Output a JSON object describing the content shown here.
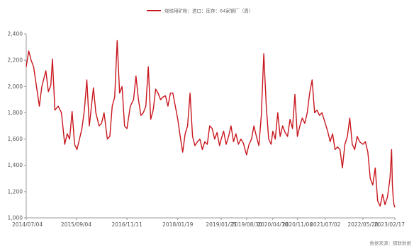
{
  "chart_data": {
    "type": "line",
    "legend": {
      "label": "烧结用矿粉：进口：库存：64家钢厂（周）",
      "position": "top-center"
    },
    "source": "数据来源：钢联数据",
    "ylim": [
      1000,
      2400
    ],
    "y_ticks": [
      "1,000",
      "1,200",
      "1,400",
      "1,600",
      "1,800",
      "2,000",
      "2,200",
      "2,400"
    ],
    "y_tick_values": [
      1000,
      1200,
      1400,
      1600,
      1800,
      2000,
      2200,
      2400
    ],
    "x_tick_labels": [
      "2014/07/04",
      "2015/09/04",
      "2016/11/11",
      "2018/01/19",
      "2019/01/25",
      "2019/08/30",
      "2020/04/10",
      "2020/11/06",
      "2021/07/02",
      "2022/05/20",
      "2023/02/17"
    ],
    "x_range": [
      "2014/07/04",
      "2023/02/17"
    ],
    "grid": {
      "horizontal": false,
      "vertical": false
    },
    "colors": {
      "series": "#c8161d",
      "axis": "#999999",
      "text": "#555555"
    },
    "series": [
      {
        "name": "烧结用矿粉：进口：库存：64家钢厂（周）",
        "points": [
          [
            "2014/07/04",
            2150
          ],
          [
            "2014/07/25",
            2270
          ],
          [
            "2014/08/15",
            2200
          ],
          [
            "2014/09/05",
            2150
          ],
          [
            "2014/10/03",
            1980
          ],
          [
            "2014/10/24",
            1850
          ],
          [
            "2014/11/14",
            2000
          ],
          [
            "2014/12/19",
            2120
          ],
          [
            "2015/01/09",
            1960
          ],
          [
            "2015/01/30",
            2010
          ],
          [
            "2015/02/13",
            2210
          ],
          [
            "2015/03/06",
            1820
          ],
          [
            "2015/04/03",
            1850
          ],
          [
            "2015/05/01",
            1800
          ],
          [
            "2015/05/29",
            1560
          ],
          [
            "2015/06/19",
            1640
          ],
          [
            "2015/07/10",
            1600
          ],
          [
            "2015/07/31",
            1810
          ],
          [
            "2015/08/21",
            1560
          ],
          [
            "2015/09/11",
            1520
          ],
          [
            "2015/10/02",
            1600
          ],
          [
            "2015/10/23",
            1680
          ],
          [
            "2015/11/13",
            1820
          ],
          [
            "2015/12/04",
            2050
          ],
          [
            "2015/12/25",
            1700
          ],
          [
            "2016/01/29",
            1990
          ],
          [
            "2016/02/19",
            1800
          ],
          [
            "2016/03/18",
            1700
          ],
          [
            "2016/04/08",
            1720
          ],
          [
            "2016/04/29",
            1800
          ],
          [
            "2016/05/27",
            1600
          ],
          [
            "2016/06/17",
            1620
          ],
          [
            "2016/07/08",
            1850
          ],
          [
            "2016/07/29",
            1920
          ],
          [
            "2016/08/19",
            2350
          ],
          [
            "2016/09/09",
            1950
          ],
          [
            "2016/09/30",
            2000
          ],
          [
            "2016/10/21",
            1700
          ],
          [
            "2016/11/11",
            1680
          ],
          [
            "2016/12/09",
            1850
          ],
          [
            "2017/01/06",
            1900
          ],
          [
            "2017/01/27",
            2080
          ],
          [
            "2017/02/17",
            1900
          ],
          [
            "2017/03/10",
            1780
          ],
          [
            "2017/03/31",
            1800
          ],
          [
            "2017/04/21",
            1850
          ],
          [
            "2017/05/12",
            2150
          ],
          [
            "2017/06/02",
            1750
          ],
          [
            "2017/06/23",
            1820
          ],
          [
            "2017/07/14",
            1980
          ],
          [
            "2017/08/04",
            1950
          ],
          [
            "2017/08/25",
            1900
          ],
          [
            "2017/09/15",
            1920
          ],
          [
            "2017/10/06",
            1930
          ],
          [
            "2017/10/27",
            1850
          ],
          [
            "2017/11/17",
            1950
          ],
          [
            "2017/12/08",
            1950
          ],
          [
            "2018/01/19",
            1750
          ],
          [
            "2018/02/09",
            1620
          ],
          [
            "2018/03/02",
            1500
          ],
          [
            "2018/03/23",
            1640
          ],
          [
            "2018/04/13",
            1700
          ],
          [
            "2018/05/04",
            1950
          ],
          [
            "2018/05/25",
            1620
          ],
          [
            "2018/06/15",
            1550
          ],
          [
            "2018/07/06",
            1580
          ],
          [
            "2018/07/27",
            1600
          ],
          [
            "2018/08/17",
            1520
          ],
          [
            "2018/09/07",
            1580
          ],
          [
            "2018/09/28",
            1560
          ],
          [
            "2018/10/19",
            1700
          ],
          [
            "2018/11/09",
            1680
          ],
          [
            "2018/11/30",
            1600
          ],
          [
            "2018/12/21",
            1650
          ],
          [
            "2019/01/11",
            1550
          ],
          [
            "2019/01/25",
            1600
          ],
          [
            "2019/02/15",
            1660
          ],
          [
            "2019/03/08",
            1560
          ],
          [
            "2019/03/29",
            1620
          ],
          [
            "2019/04/19",
            1700
          ],
          [
            "2019/05/10",
            1580
          ],
          [
            "2019/05/31",
            1640
          ],
          [
            "2019/06/21",
            1560
          ],
          [
            "2019/07/12",
            1600
          ],
          [
            "2019/08/02",
            1570
          ],
          [
            "2019/08/30",
            1480
          ],
          [
            "2019/09/20",
            1560
          ],
          [
            "2019/10/11",
            1600
          ],
          [
            "2019/11/01",
            1700
          ],
          [
            "2019/11/22",
            1620
          ],
          [
            "2019/12/13",
            1550
          ],
          [
            "2020/01/03",
            1780
          ],
          [
            "2020/01/24",
            2250
          ],
          [
            "2020/02/14",
            1850
          ],
          [
            "2020/03/06",
            1600
          ],
          [
            "2020/03/27",
            1560
          ],
          [
            "2020/04/10",
            1660
          ],
          [
            "2020/05/01",
            1600
          ],
          [
            "2020/05/22",
            1800
          ],
          [
            "2020/06/12",
            1620
          ],
          [
            "2020/07/03",
            1700
          ],
          [
            "2020/07/24",
            1650
          ],
          [
            "2020/08/14",
            1620
          ],
          [
            "2020/09/04",
            1750
          ],
          [
            "2020/09/25",
            1680
          ],
          [
            "2020/10/16",
            1940
          ],
          [
            "2020/11/06",
            1620
          ],
          [
            "2020/11/27",
            1700
          ],
          [
            "2020/12/18",
            1760
          ],
          [
            "2021/01/08",
            1720
          ],
          [
            "2021/01/29",
            1800
          ],
          [
            "2021/02/19",
            1950
          ],
          [
            "2021/03/12",
            2050
          ],
          [
            "2021/04/02",
            1800
          ],
          [
            "2021/04/23",
            1820
          ],
          [
            "2021/05/14",
            1780
          ],
          [
            "2021/06/04",
            1800
          ],
          [
            "2021/07/02",
            1720
          ],
          [
            "2021/07/23",
            1660
          ],
          [
            "2021/08/13",
            1580
          ],
          [
            "2021/09/03",
            1640
          ],
          [
            "2021/09/24",
            1520
          ],
          [
            "2021/10/15",
            1540
          ],
          [
            "2021/11/05",
            1520
          ],
          [
            "2021/11/26",
            1380
          ],
          [
            "2021/12/17",
            1560
          ],
          [
            "2022/01/07",
            1620
          ],
          [
            "2022/01/28",
            1760
          ],
          [
            "2022/02/18",
            1560
          ],
          [
            "2022/03/11",
            1520
          ],
          [
            "2022/04/01",
            1620
          ],
          [
            "2022/04/22",
            1580
          ],
          [
            "2022/05/20",
            1560
          ],
          [
            "2022/06/10",
            1580
          ],
          [
            "2022/07/01",
            1500
          ],
          [
            "2022/07/22",
            1300
          ],
          [
            "2022/08/12",
            1250
          ],
          [
            "2022/09/02",
            1380
          ],
          [
            "2022/09/23",
            1130
          ],
          [
            "2022/10/14",
            1090
          ],
          [
            "2022/11/04",
            1180
          ],
          [
            "2022/11/25",
            1100
          ],
          [
            "2022/12/16",
            1160
          ],
          [
            "2023/01/06",
            1300
          ],
          [
            "2023/01/20",
            1520
          ],
          [
            "2023/01/27",
            1250
          ],
          [
            "2023/02/03",
            1150
          ],
          [
            "2023/02/10",
            1100
          ],
          [
            "2023/02/17",
            1080
          ]
        ]
      }
    ]
  }
}
